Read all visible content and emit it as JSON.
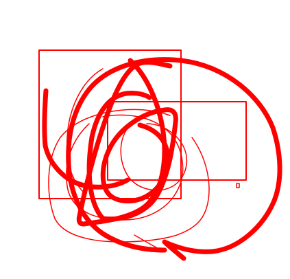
{
  "drawing": {
    "stroke_color": "#ff0000",
    "background_color": "#ffffff"
  }
}
